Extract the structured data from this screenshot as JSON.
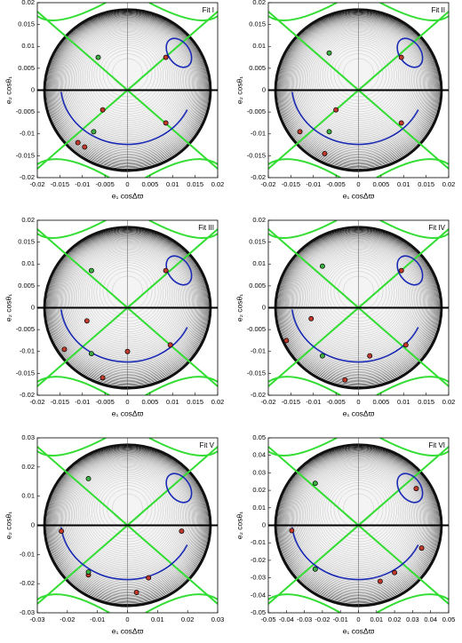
{
  "chart_data": [
    {
      "type": "scatter",
      "title": "Fit I",
      "x_label": "e₁ cosΔϖ",
      "y_label": "e₂ cosθ₁",
      "xlim": [
        -0.02,
        0.02
      ],
      "ylim": [
        -0.02,
        0.02
      ],
      "xticks": [
        -0.02,
        -0.015,
        -0.01,
        -0.005,
        0,
        0.005,
        0.01,
        0.015,
        0.02
      ],
      "yticks": [
        -0.02,
        -0.015,
        -0.01,
        -0.005,
        0,
        0.005,
        0.01,
        0.015,
        0.02
      ],
      "series": [
        {
          "color": "#c0392b",
          "x": [
            -0.0055,
            -0.011,
            -0.0095,
            0.0085,
            0.0085
          ],
          "values": [
            -0.0045,
            -0.012,
            -0.013,
            -0.0075,
            0.0075
          ]
        },
        {
          "color": "#3cb043",
          "x": [
            -0.0065,
            -0.0075
          ],
          "values": [
            0.0075,
            -0.0095
          ]
        }
      ]
    },
    {
      "type": "scatter",
      "title": "Fit II",
      "x_label": "e₁ cosΔϖ",
      "y_label": "e₂ cosθ₁",
      "xlim": [
        -0.02,
        0.02
      ],
      "ylim": [
        -0.02,
        0.02
      ],
      "xticks": [
        -0.02,
        -0.015,
        -0.01,
        -0.005,
        0,
        0.005,
        0.01,
        0.015,
        0.02
      ],
      "yticks": [
        -0.02,
        -0.015,
        -0.01,
        -0.005,
        0,
        0.005,
        0.01,
        0.015,
        0.02
      ],
      "series": [
        {
          "color": "#c0392b",
          "x": [
            -0.005,
            -0.013,
            -0.0075,
            0.0095,
            0.0095
          ],
          "values": [
            -0.0045,
            -0.0095,
            -0.0145,
            -0.0075,
            0.0075
          ]
        },
        {
          "color": "#3cb043",
          "x": [
            -0.0065,
            -0.0065
          ],
          "values": [
            0.0085,
            -0.0095
          ]
        }
      ]
    },
    {
      "type": "scatter",
      "title": "Fit III",
      "x_label": "e₁ cosΔϖ",
      "y_label": "e₂ cosθ₁",
      "xlim": [
        -0.02,
        0.02
      ],
      "ylim": [
        -0.02,
        0.02
      ],
      "xticks": [
        -0.02,
        -0.015,
        -0.01,
        -0.005,
        0,
        0.005,
        0.01,
        0.015,
        0.02
      ],
      "yticks": [
        -0.02,
        -0.015,
        -0.01,
        -0.005,
        0,
        0.005,
        0.01,
        0.015,
        0.02
      ],
      "series": [
        {
          "color": "#c0392b",
          "x": [
            -0.009,
            -0.014,
            0,
            -0.0055,
            0.0095,
            0.0085
          ],
          "values": [
            -0.003,
            -0.0095,
            -0.01,
            -0.016,
            -0.0085,
            0.0085
          ]
        },
        {
          "color": "#3cb043",
          "x": [
            -0.008,
            -0.008
          ],
          "values": [
            0.0085,
            -0.0105
          ]
        }
      ]
    },
    {
      "type": "scatter",
      "title": "Fit IV",
      "x_label": "e₁ cosΔϖ",
      "y_label": "e₂ cosθ₁",
      "xlim": [
        -0.02,
        0.02
      ],
      "ylim": [
        -0.02,
        0.02
      ],
      "xticks": [
        -0.02,
        -0.015,
        -0.01,
        -0.005,
        0,
        0.005,
        0.01,
        0.015,
        0.02
      ],
      "yticks": [
        -0.02,
        -0.015,
        -0.01,
        -0.005,
        0,
        0.005,
        0.01,
        0.015,
        0.02
      ],
      "series": [
        {
          "color": "#c0392b",
          "x": [
            -0.0105,
            -0.016,
            0.0025,
            -0.003,
            0.0105,
            0.0095
          ],
          "values": [
            -0.0025,
            -0.0075,
            -0.011,
            -0.0165,
            -0.0085,
            0.0085
          ]
        },
        {
          "color": "#3cb043",
          "x": [
            -0.008,
            -0.008
          ],
          "values": [
            0.0095,
            -0.011
          ]
        }
      ]
    },
    {
      "type": "scatter",
      "title": "Fit V",
      "x_label": "e₁ cosΔϖ",
      "y_label": "e₂ cosθ₁",
      "xlim": [
        -0.03,
        0.03
      ],
      "ylim": [
        -0.03,
        0.03
      ],
      "xticks": [
        -0.03,
        -0.02,
        -0.01,
        0,
        0.01,
        0.02,
        0.03
      ],
      "yticks": [
        -0.03,
        -0.02,
        -0.01,
        0,
        0.01,
        0.02,
        0.03
      ],
      "series": [
        {
          "color": "#c0392b",
          "x": [
            -0.022,
            -0.013,
            0.007,
            0.003,
            0.018
          ],
          "values": [
            -0.002,
            -0.017,
            -0.018,
            -0.023,
            -0.002
          ]
        },
        {
          "color": "#3cb043",
          "x": [
            -0.013,
            -0.013
          ],
          "values": [
            0.016,
            -0.016
          ]
        }
      ]
    },
    {
      "type": "scatter",
      "title": "Fit VI",
      "x_label": "e₁ cosΔϖ",
      "y_label": "e₂ cosθ₁",
      "xlim": [
        -0.05,
        0.05
      ],
      "ylim": [
        -0.05,
        0.05
      ],
      "xticks": [
        -0.05,
        -0.04,
        -0.03,
        -0.02,
        -0.01,
        0,
        0.01,
        0.02,
        0.03,
        0.04,
        0.05
      ],
      "yticks": [
        -0.05,
        -0.04,
        -0.03,
        -0.02,
        -0.01,
        0,
        0.01,
        0.02,
        0.03,
        0.04,
        0.05
      ],
      "series": [
        {
          "color": "#c0392b",
          "x": [
            -0.037,
            0.012,
            0.02,
            0.035,
            0.032
          ],
          "values": [
            -0.003,
            -0.032,
            -0.027,
            -0.013,
            0.021
          ]
        },
        {
          "color": "#3cb043",
          "x": [
            -0.024,
            -0.024
          ],
          "values": [
            0.024,
            -0.025
          ]
        }
      ]
    }
  ]
}
